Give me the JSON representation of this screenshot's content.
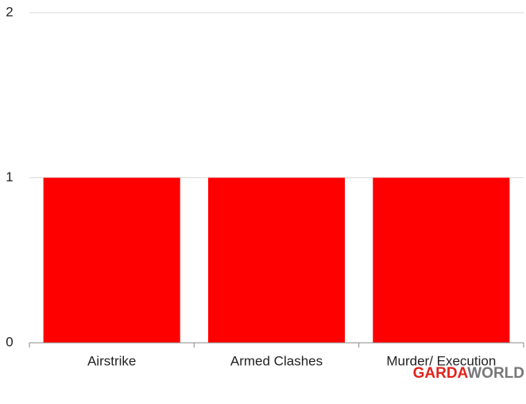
{
  "chart_data": {
    "type": "bar",
    "categories": [
      "Airstrike",
      "Armed Clashes",
      "Murder/ Execution"
    ],
    "values": [
      1,
      1,
      1
    ],
    "color": "#ff0000",
    "ylim": [
      0,
      2
    ],
    "yticks": [
      0,
      1,
      2
    ],
    "grid": true
  },
  "logo": [
    "GARDA",
    "WORLD"
  ]
}
